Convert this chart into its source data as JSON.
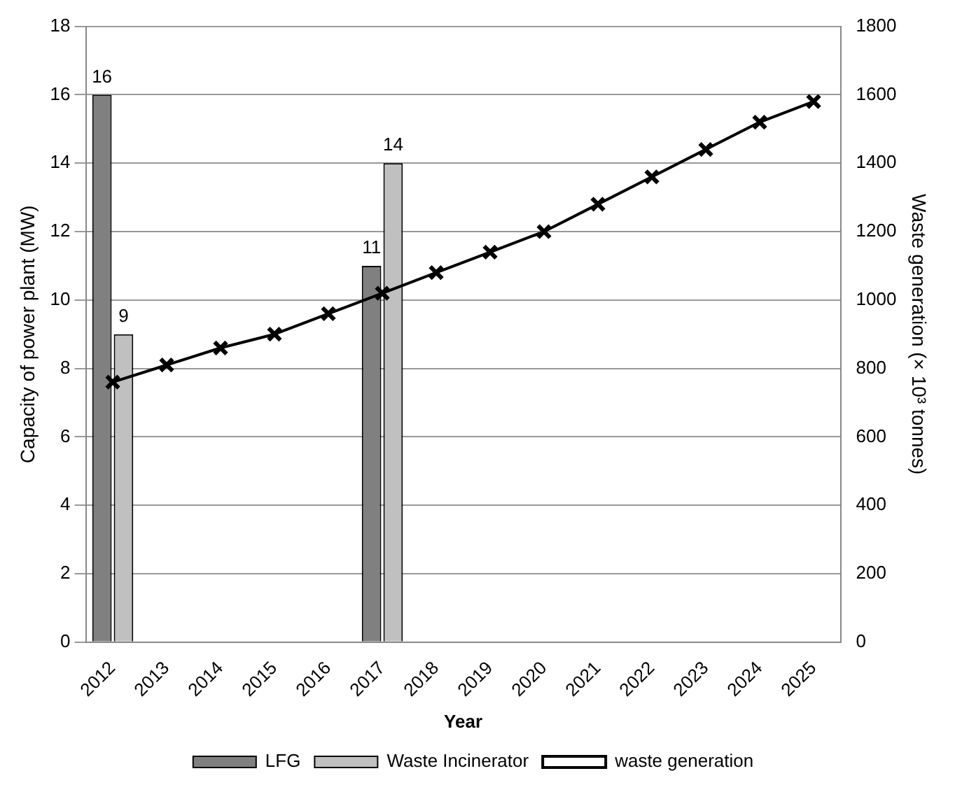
{
  "chart_data": {
    "type": "bar",
    "xlabel": "Year",
    "ylabel": "Capacity of power plant (MW)",
    "y2label": "Waste generation (× 10³ tonnes)",
    "categories": [
      "2012",
      "2013",
      "2014",
      "2015",
      "2016",
      "2017",
      "2018",
      "2019",
      "2020",
      "2021",
      "2022",
      "2023",
      "2024",
      "2025"
    ],
    "series": [
      {
        "name": "LFG",
        "color": "#808080",
        "values": [
          16,
          null,
          null,
          null,
          null,
          11,
          null,
          null,
          null,
          null,
          null,
          null,
          null,
          null
        ],
        "value_labels": [
          "16",
          null,
          null,
          null,
          null,
          "11",
          null,
          null,
          null,
          null,
          null,
          null,
          null,
          null
        ]
      },
      {
        "name": "Waste Incinerator",
        "color": "#c0c0c0",
        "values": [
          9,
          null,
          null,
          null,
          null,
          14,
          null,
          null,
          null,
          null,
          null,
          null,
          null,
          null
        ],
        "value_labels": [
          "9",
          null,
          null,
          null,
          null,
          "14",
          null,
          null,
          null,
          null,
          null,
          null,
          null,
          null
        ]
      },
      {
        "name": "waste generation",
        "type": "line",
        "axis": "y2",
        "color": "#000000",
        "marker": "cross",
        "values": [
          760,
          810,
          860,
          900,
          960,
          1020,
          1080,
          1140,
          1200,
          1280,
          1360,
          1440,
          1520,
          1580
        ]
      }
    ],
    "ylim": [
      0,
      18
    ],
    "yticks": [
      0,
      2,
      4,
      6,
      8,
      10,
      12,
      14,
      16,
      18
    ],
    "y2lim": [
      0,
      1800
    ],
    "y2ticks": [
      0,
      200,
      400,
      600,
      800,
      1000,
      1200,
      1400,
      1600,
      1800
    ],
    "grid": "y",
    "legend": "bottom"
  }
}
